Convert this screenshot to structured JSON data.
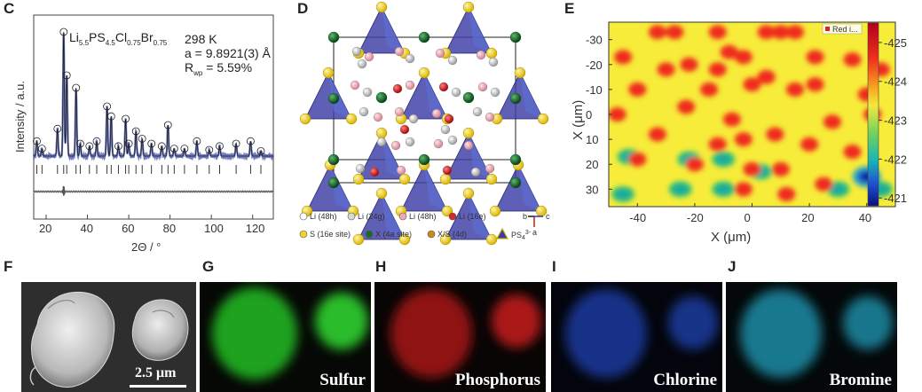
{
  "figure": {
    "panels": {
      "C": {
        "label": "C",
        "formula": "Li5.5PS4.5Cl0.75Br0.75",
        "formula_parts": {
          "li": "Li",
          "li_sub": "5.5",
          "ps": "PS",
          "ps_sub": "4.5",
          "cl": "Cl",
          "cl_sub": "0.75",
          "br": "Br",
          "br_sub": "0.75"
        },
        "temperature": "298 K",
        "lattice": "a = 9.8921(3) Å",
        "rwp": "= 5.59%",
        "rwp_symbol": "R",
        "rwp_sub": "wp",
        "xlabel": "2Θ / °",
        "ylabel": "Intensity / a.u.",
        "xticks": [
          "20",
          "40",
          "60",
          "80",
          "100",
          "120"
        ]
      },
      "D": {
        "label": "D",
        "legend": [
          {
            "text": "Li (48h)",
            "color": "#ffffff"
          },
          {
            "text": "Li (24g)",
            "color": "#d8d8d8"
          },
          {
            "text": "Li (48h)",
            "color": "#f2a9b5"
          },
          {
            "text": "Li (16e)",
            "color": "#d42a2a"
          },
          {
            "text": "S (16e site)",
            "color": "#f2d22c"
          },
          {
            "text": "X (4a site)",
            "color": "#1a6b2a"
          },
          {
            "text": "X/S (4d)",
            "color": "#c98a1a"
          },
          {
            "text": "PS",
            "color": "#3a3aa8"
          }
        ],
        "ps_sub": "4",
        "ps_sup": "3-",
        "axis_letters": {
          "b": "b",
          "c": "c",
          "a": "a"
        }
      },
      "E": {
        "label": "E",
        "xlabel": "X (μm)",
        "ylabel": "X (μm)",
        "xticks": [
          "-40",
          "-20",
          "0",
          "20",
          "40"
        ],
        "yticks": [
          "-30",
          "-20",
          "-10",
          "0",
          "10",
          "20",
          "30"
        ],
        "colorbar_ticks": [
          "-425",
          "-424",
          "-423",
          "-422",
          "-421"
        ],
        "legend_text": "Red i..."
      },
      "F": {
        "label": "F",
        "scale_text": "2.5 μm"
      },
      "G": {
        "label": "G",
        "element": "Sulfur",
        "color": "#2ecc2e"
      },
      "H": {
        "label": "H",
        "element": "Phosphorus",
        "color": "#d61f1f"
      },
      "I": {
        "label": "I",
        "element": "Chlorine",
        "color": "#2456d6"
      },
      "J": {
        "label": "J",
        "element": "Bromine",
        "color": "#27b7d6"
      }
    }
  },
  "chart_data": [
    {
      "type": "line",
      "panel": "C",
      "title": "Li5.5PS4.5Cl0.75Br0.75",
      "xlabel": "2Θ / °",
      "ylabel": "Intensity / a.u.",
      "xlim": [
        14,
        130
      ],
      "peaks": [
        {
          "x": 15.5,
          "h": 0.12
        },
        {
          "x": 18.0,
          "h": 0.06
        },
        {
          "x": 25.5,
          "h": 0.22
        },
        {
          "x": 28.5,
          "h": 1.0
        },
        {
          "x": 30.0,
          "h": 0.65
        },
        {
          "x": 34.5,
          "h": 0.55
        },
        {
          "x": 36.5,
          "h": 0.1
        },
        {
          "x": 41.0,
          "h": 0.08
        },
        {
          "x": 44.5,
          "h": 0.12
        },
        {
          "x": 49.5,
          "h": 0.4
        },
        {
          "x": 51.5,
          "h": 0.32
        },
        {
          "x": 55.0,
          "h": 0.08
        },
        {
          "x": 58.5,
          "h": 0.3
        },
        {
          "x": 60.0,
          "h": 0.1
        },
        {
          "x": 63.5,
          "h": 0.2
        },
        {
          "x": 66.5,
          "h": 0.14
        },
        {
          "x": 71.0,
          "h": 0.1
        },
        {
          "x": 76.0,
          "h": 0.08
        },
        {
          "x": 79.0,
          "h": 0.25
        },
        {
          "x": 82.0,
          "h": 0.06
        },
        {
          "x": 87.0,
          "h": 0.06
        },
        {
          "x": 93.0,
          "h": 0.12
        },
        {
          "x": 99.0,
          "h": 0.05
        },
        {
          "x": 104.0,
          "h": 0.08
        },
        {
          "x": 112.0,
          "h": 0.1
        },
        {
          "x": 119.0,
          "h": 0.12
        },
        {
          "x": 124.0,
          "h": 0.04
        }
      ]
    },
    {
      "type": "heatmap",
      "panel": "E",
      "xlabel": "X (μm)",
      "ylabel": "X (μm)",
      "xlim": [
        -50,
        50
      ],
      "ylim": [
        -37,
        37
      ],
      "colorbar_range": [
        -425.5,
        -420.8
      ],
      "background_value": -424.2,
      "red_spots": [
        [
          -33,
          -33
        ],
        [
          -27,
          -33
        ],
        [
          -12,
          -33
        ],
        [
          -8,
          -25
        ],
        [
          5,
          -33
        ],
        [
          10,
          -33
        ],
        [
          15,
          -33
        ],
        [
          -45,
          -23
        ],
        [
          -30,
          -18
        ],
        [
          -22,
          -20
        ],
        [
          -12,
          -18
        ],
        [
          -3,
          -23
        ],
        [
          22,
          -23
        ],
        [
          35,
          -22
        ],
        [
          45,
          -18
        ],
        [
          -40,
          -10
        ],
        [
          -15,
          -10
        ],
        [
          0,
          -12
        ],
        [
          5,
          -15
        ],
        [
          15,
          -10
        ],
        [
          22,
          -12
        ],
        [
          40,
          -8
        ],
        [
          -47,
          0
        ],
        [
          -23,
          -3
        ],
        [
          -7,
          2
        ],
        [
          28,
          3
        ],
        [
          42,
          0
        ],
        [
          -33,
          8
        ],
        [
          -12,
          12
        ],
        [
          -3,
          10
        ],
        [
          8,
          8
        ],
        [
          20,
          12
        ],
        [
          35,
          15
        ],
        [
          -40,
          18
        ],
        [
          -20,
          20
        ],
        [
          0,
          22
        ],
        [
          10,
          22
        ],
        [
          25,
          28
        ],
        [
          -3,
          30
        ],
        [
          12,
          32
        ]
      ],
      "blue_spot": [
        40,
        25
      ],
      "green_spots": [
        [
          -43,
          17
        ],
        [
          -22,
          18
        ],
        [
          -10,
          18
        ],
        [
          3,
          23
        ],
        [
          -45,
          32
        ],
        [
          -25,
          30
        ],
        [
          -10,
          30
        ],
        [
          30,
          30
        ],
        [
          45,
          30
        ]
      ]
    }
  ]
}
